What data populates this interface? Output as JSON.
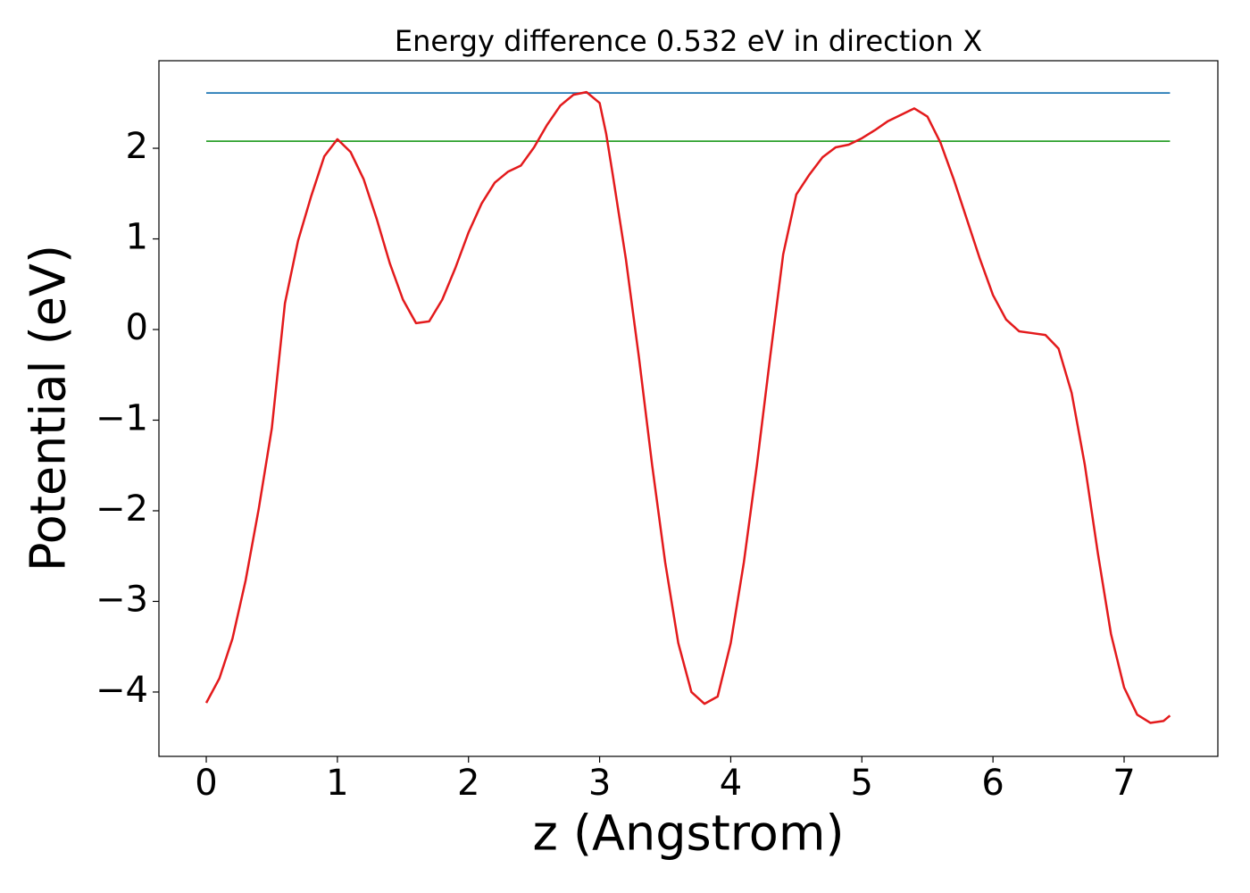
{
  "chart_data": {
    "type": "line",
    "title": "Energy difference 0.532 eV in direction X",
    "x_label": "z (Angstrom)",
    "y_label": "Potential (eV)",
    "xlim": [
      -0.361,
      7.715
    ],
    "ylim": [
      -4.71,
      2.966
    ],
    "xticks": [
      0,
      1,
      2,
      3,
      4,
      5,
      6,
      7
    ],
    "yticks": [
      {
        "value": -4,
        "label": "−4"
      },
      {
        "value": -3,
        "label": "−3"
      },
      {
        "value": -2,
        "label": "−2"
      },
      {
        "value": -1,
        "label": "−1"
      },
      0,
      1,
      2
    ],
    "grid": false,
    "series": [
      {
        "color": "#1f77b4",
        "x": [
          0,
          7.35
        ],
        "values": [
          2.61,
          2.61
        ]
      },
      {
        "color": "#2ca02c",
        "x": [
          0,
          7.35
        ],
        "values": [
          2.078,
          2.078
        ]
      },
      {
        "color": "#e31a1c",
        "x": [
          0,
          0.1,
          0.2,
          0.3,
          0.4,
          0.5,
          0.6,
          0.7,
          0.8,
          0.9,
          1.0,
          1.1,
          1.2,
          1.3,
          1.4,
          1.5,
          1.6,
          1.7,
          1.8,
          1.9,
          2.0,
          2.1,
          2.2,
          2.3,
          2.4,
          2.5,
          2.6,
          2.7,
          2.8,
          2.9,
          3.0,
          3.05,
          3.1,
          3.2,
          3.3,
          3.4,
          3.5,
          3.6,
          3.7,
          3.8,
          3.9,
          4.0,
          4.1,
          4.2,
          4.3,
          4.4,
          4.5,
          4.6,
          4.7,
          4.8,
          4.9,
          5.0,
          5.1,
          5.2,
          5.3,
          5.4,
          5.5,
          5.6,
          5.7,
          5.8,
          5.9,
          6.0,
          6.1,
          6.2,
          6.3,
          6.4,
          6.5,
          6.6,
          6.7,
          6.8,
          6.9,
          7.0,
          7.1,
          7.2,
          7.3,
          7.35
        ],
        "values": [
          -4.12,
          -3.85,
          -3.41,
          -2.77,
          -1.98,
          -1.09,
          0.29,
          0.98,
          1.47,
          1.91,
          2.1,
          1.96,
          1.66,
          1.22,
          0.73,
          0.33,
          0.07,
          0.09,
          0.33,
          0.68,
          1.07,
          1.39,
          1.62,
          1.74,
          1.81,
          2.01,
          2.26,
          2.47,
          2.59,
          2.62,
          2.5,
          2.16,
          1.71,
          0.78,
          -0.31,
          -1.49,
          -2.57,
          -3.46,
          -4.0,
          -4.13,
          -4.05,
          -3.46,
          -2.57,
          -1.49,
          -0.31,
          0.83,
          1.49,
          1.71,
          1.9,
          2.01,
          2.04,
          2.11,
          2.2,
          2.3,
          2.37,
          2.44,
          2.35,
          2.06,
          1.66,
          1.22,
          0.78,
          0.38,
          0.11,
          -0.02,
          -0.04,
          -0.06,
          -0.21,
          -0.7,
          -1.49,
          -2.47,
          -3.36,
          -3.95,
          -4.25,
          -4.34,
          -4.32,
          -4.26
        ]
      }
    ]
  }
}
